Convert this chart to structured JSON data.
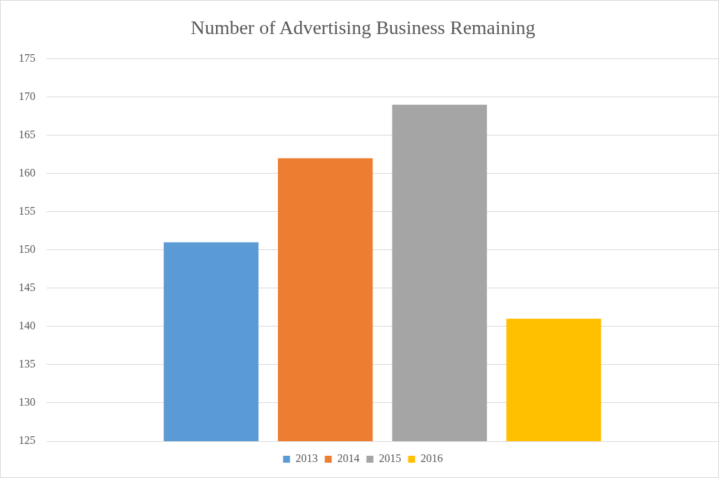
{
  "chart_data": {
    "type": "bar",
    "title": "Number of Advertising Business Remaining",
    "categories": [
      null
    ],
    "series": [
      {
        "name": "2013",
        "color": "#5b9bd5",
        "values": [
          151
        ]
      },
      {
        "name": "2014",
        "color": "#ed7d31",
        "values": [
          162
        ]
      },
      {
        "name": "2015",
        "color": "#a5a5a5",
        "values": [
          169
        ]
      },
      {
        "name": "2016",
        "color": "#ffc000",
        "values": [
          141
        ]
      }
    ],
    "ylim": [
      125,
      175
    ],
    "yticks": [
      125,
      130,
      135,
      140,
      145,
      150,
      155,
      160,
      165,
      170,
      175
    ],
    "grid": "y",
    "legend": "bottom",
    "tick_labels": "y"
  }
}
